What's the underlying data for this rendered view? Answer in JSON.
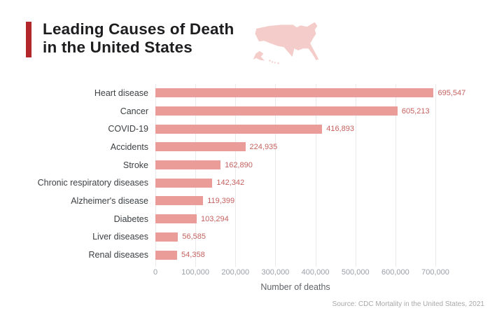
{
  "header": {
    "title_line1": "Leading Causes of Death",
    "title_line2": "in the United States",
    "accent_color": "#b2262c",
    "map_color": "#f4cdca"
  },
  "chart_data": {
    "type": "bar",
    "orientation": "horizontal",
    "title": "Leading Causes of Death in the United States",
    "categories": [
      "Heart disease",
      "Cancer",
      "COVID-19",
      "Accidents",
      "Stroke",
      "Chronic respiratory diseases",
      "Alzheimer's disease",
      "Diabetes",
      "Liver diseases",
      "Renal diseases"
    ],
    "values": [
      695547,
      605213,
      416893,
      224935,
      162890,
      142342,
      119399,
      103294,
      56585,
      54358
    ],
    "value_labels": [
      "695,547",
      "605,213",
      "416,893",
      "224,935",
      "162,890",
      "142,342",
      "119,399",
      "103,294",
      "56,585",
      "54,358"
    ],
    "xlabel": "Number of deaths",
    "ylabel": "",
    "xlim": [
      0,
      700000
    ],
    "xticks": [
      0,
      100000,
      200000,
      300000,
      400000,
      500000,
      600000,
      700000
    ],
    "xtick_labels": [
      "0",
      "100,000",
      "200,000",
      "300,000",
      "400,000",
      "500,000",
      "600,000",
      "700,000"
    ],
    "grid": "vertical",
    "legend": "none",
    "bar_color": "#ea9c98",
    "value_label_color": "#c4625f"
  },
  "footer": {
    "source": "Source: CDC Mortality in the United States, 2021"
  }
}
